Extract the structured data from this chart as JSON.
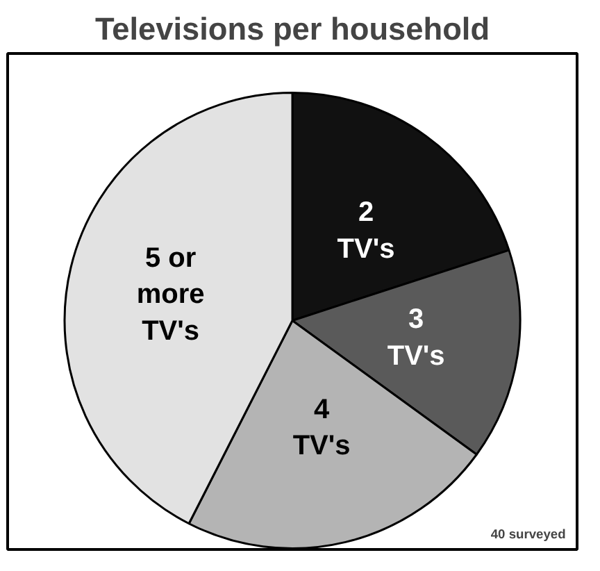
{
  "chart_data": {
    "type": "pie",
    "title": "Televisions per household",
    "categories": [
      "2 TV's",
      "3 TV's",
      "4 TV's",
      "5 or more TV's"
    ],
    "values": [
      20,
      15,
      22.5,
      42.5
    ],
    "colors": [
      "#111111",
      "#5a5a5a",
      "#b4b4b4",
      "#e2e2e2"
    ],
    "annotations": [
      "40 surveyed"
    ]
  }
}
